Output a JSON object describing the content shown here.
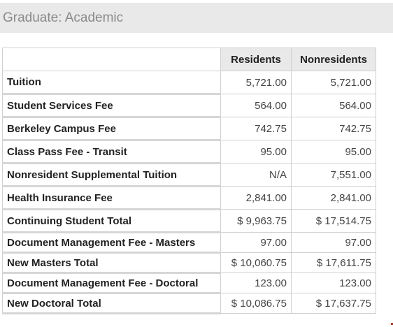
{
  "header": {
    "title": "Graduate: Academic"
  },
  "table": {
    "columns": [
      "",
      "Residents",
      "Nonresidents"
    ],
    "rows": [
      {
        "label": "Tuition",
        "residents": "5,721.00",
        "nonresidents": "5,721.00"
      },
      {
        "label": "Student Services Fee",
        "residents": "564.00",
        "nonresidents": "564.00"
      },
      {
        "label": "Berkeley Campus Fee",
        "residents": "742.75",
        "nonresidents": "742.75"
      },
      {
        "label": "Class Pass Fee - Transit",
        "residents": "95.00",
        "nonresidents": "95.00"
      },
      {
        "label": "Nonresident Supplemental Tuition",
        "residents": "N/A",
        "nonresidents": "7,551.00"
      },
      {
        "label": "Health Insurance Fee",
        "residents": "2,841.00",
        "nonresidents": "2,841.00"
      },
      {
        "label": "Continuing Student Total",
        "residents": "$ 9,963.75",
        "nonresidents": "$ 17,514.75"
      },
      {
        "label": "Document Management Fee - Masters",
        "residents": "97.00",
        "nonresidents": "97.00"
      },
      {
        "label": "New Masters Total",
        "residents": "$ 10,060.75",
        "nonresidents": "$ 17,611.75"
      },
      {
        "label": "Document Management Fee - Doctoral",
        "residents": "123.00",
        "nonresidents": "123.00"
      },
      {
        "label": "New Doctoral Total",
        "residents": "$ 10,086.75",
        "nonresidents": "$ 17,637.75"
      }
    ]
  }
}
